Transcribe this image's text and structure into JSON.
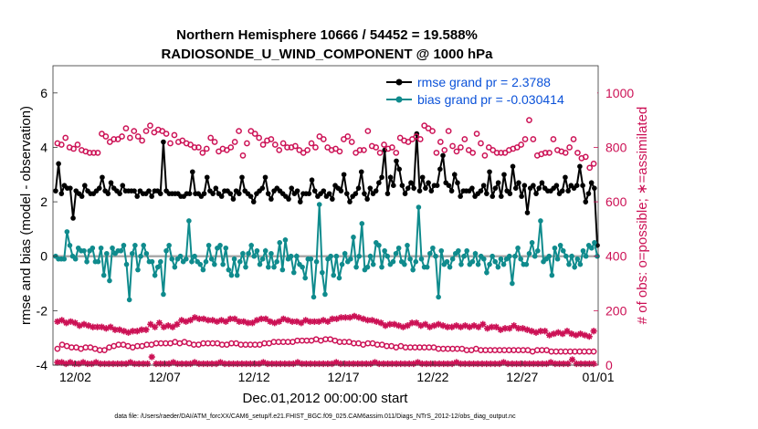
{
  "chart_data": {
    "type": "line",
    "title": "Northern Hemisphere 10666 / 54452 = 19.588%",
    "subtitle": "RADIOSONDE_U_WIND_COMPONENT @ 1000 hPa",
    "xlabel": "Dec.01,2012 00:00:00 start",
    "ylabel": "rmse and bias (model - observation)",
    "ylabel_right": "# of obs: o=possible; ∗=assimilated",
    "footnote": "data file: /Users/raeder/DAI/ATM_forcXX/CAM6_setup/f.e21.FHIST_BGC.f09_025.CAM6assim.011/Diags_NTrS_2012-12/obs_diag_output.nc",
    "xlim": [
      0.75,
      31.25
    ],
    "ylim": [
      -4,
      7
    ],
    "ylim_right": [
      0,
      1100
    ],
    "yticks": [
      -4,
      -2,
      0,
      2,
      4,
      6
    ],
    "yticks_right": [
      0,
      200,
      400,
      600,
      800,
      1000
    ],
    "xticks": [
      {
        "value": 2,
        "label": "12/02"
      },
      {
        "value": 7,
        "label": "12/07"
      },
      {
        "value": 12,
        "label": "12/12"
      },
      {
        "value": 17,
        "label": "12/17"
      },
      {
        "value": 22,
        "label": "12/22"
      },
      {
        "value": 27,
        "label": "12/27"
      },
      {
        "value": 32,
        "label": "01/01"
      }
    ],
    "x_start": 1,
    "x_step": 0.25,
    "legend": [
      {
        "name": "rmse grand pr = 2.3788",
        "color": "#000000"
      },
      {
        "name": "bias grand pr = -0.030414",
        "color": "#0f8b8d"
      }
    ],
    "series": [
      {
        "name": "rmse",
        "color": "#000000",
        "values": [
          2.4,
          3.4,
          2.3,
          2.6,
          2.5,
          2.5,
          1.4,
          2.4,
          2.3,
          2.2,
          2.6,
          2.4,
          2.3,
          2.3,
          2.4,
          2.5,
          2.9,
          2.4,
          2.3,
          2.7,
          2.5,
          2.4,
          2.3,
          2.6,
          2.4,
          2.4,
          2.4,
          2.4,
          2.2,
          2.4,
          2.3,
          2.3,
          2.4,
          2.2,
          2.4,
          2.4,
          2.3,
          4.2,
          2.4,
          2.3,
          2.3,
          2.3,
          2.3,
          2.2,
          2.2,
          2.3,
          2.3,
          3.1,
          2.3,
          2.3,
          2.2,
          2.3,
          2.9,
          2.4,
          2.3,
          2.5,
          2.3,
          2.2,
          2.4,
          2.4,
          2.3,
          2.1,
          2.4,
          2.3,
          2.9,
          2.4,
          2.3,
          2.2,
          2.0,
          2.3,
          2.4,
          2.5,
          2.9,
          2.3,
          2.1,
          2.4,
          2.5,
          2.4,
          2.3,
          2.2,
          2.1,
          2.5,
          2.3,
          2.4,
          2.0,
          2.3,
          2.3,
          2.3,
          2.8,
          2.4,
          2.2,
          2.3,
          2.4,
          2.2,
          2.3,
          2.1,
          2.6,
          2.5,
          2.4,
          3.0,
          2.3,
          2.0,
          2.2,
          2.3,
          2.5,
          3.1,
          2.3,
          2.1,
          2.5,
          2.3,
          2.4,
          2.7,
          2.9,
          3.9,
          2.3,
          2.9,
          2.6,
          3.5,
          3.2,
          2.6,
          2.3,
          2.5,
          2.7,
          2.5,
          4.5,
          2.4,
          2.9,
          2.5,
          2.7,
          2.4,
          2.6,
          2.6,
          3.2,
          3.7,
          2.7,
          2.6,
          2.4,
          3.0,
          2.7,
          2.2,
          2.4,
          2.4,
          2.4,
          2.5,
          2.2,
          2.3,
          2.4,
          2.6,
          2.3,
          3.1,
          2.2,
          2.5,
          2.7,
          2.2,
          3.0,
          2.4,
          2.3,
          3.3,
          2.5,
          2.7,
          2.2,
          2.6,
          1.6,
          2.5,
          2.6,
          2.3,
          2.5,
          2.7,
          2.5,
          2.4,
          2.4,
          2.5,
          2.6,
          2.3,
          2.4,
          2.9,
          2.4,
          2.6,
          2.5,
          2.6,
          3.3,
          2.6,
          2.0,
          2.3,
          2.7,
          2.5,
          0.4
        ]
      },
      {
        "name": "bias",
        "color": "#0f8b8d",
        "values": [
          0.0,
          -0.1,
          -0.1,
          -0.1,
          0.9,
          0.4,
          0.0,
          -0.1,
          0.3,
          0.2,
          0.2,
          -0.2,
          0.2,
          0.3,
          -0.2,
          -0.2,
          0.3,
          -0.7,
          0.1,
          -0.9,
          0.3,
          0.1,
          0.2,
          0.2,
          0.4,
          -0.3,
          -1.6,
          0.1,
          0.4,
          -0.5,
          0.0,
          0.4,
          0.1,
          -0.2,
          -0.2,
          -0.7,
          -0.4,
          -0.2,
          -1.4,
          0.2,
          0.4,
          -0.1,
          -0.4,
          -0.1,
          0.0,
          -0.2,
          -0.1,
          1.3,
          -0.2,
          0.0,
          -0.2,
          -0.3,
          -0.5,
          -0.2,
          0.4,
          -0.1,
          -0.3,
          0.3,
          0.4,
          -0.3,
          0.3,
          -0.5,
          -0.7,
          -0.1,
          -0.7,
          -0.2,
          0.1,
          -0.4,
          0.1,
          0.4,
          0.0,
          0.2,
          -0.3,
          -0.1,
          0.2,
          -0.4,
          0.1,
          -0.4,
          -0.2,
          0.5,
          -0.5,
          0.6,
          -0.1,
          0.0,
          -0.6,
          0.0,
          -0.3,
          -0.4,
          -0.8,
          -0.1,
          -0.1,
          -1.5,
          -0.2,
          1.9,
          -0.6,
          -1.4,
          -0.1,
          0.0,
          -0.7,
          0.0,
          -0.8,
          -0.3,
          0.1,
          -0.2,
          -0.1,
          0.7,
          -0.4,
          0.0,
          1.2,
          -0.5,
          -0.4,
          0.0,
          -0.3,
          0.5,
          0.4,
          -0.4,
          0.2,
          0.0,
          -0.3,
          -0.2,
          0.1,
          0.3,
          -0.2,
          -0.3,
          0.4,
          -0.1,
          -0.5,
          -0.2,
          1.8,
          -0.1,
          -0.4,
          -0.4,
          0.1,
          0.3,
          0.0,
          -1.5,
          0.2,
          -0.3,
          -0.2,
          -0.4,
          -0.1,
          0.1,
          0.2,
          -0.3,
          0.0,
          0.2,
          -0.3,
          -0.2,
          0.1,
          -0.3,
          0.0,
          -0.1,
          -0.6,
          -0.3,
          0.0,
          -0.2,
          -0.4,
          -0.1,
          -0.3,
          -0.1,
          0.0,
          -1.0,
          0.0,
          0.3,
          -0.1,
          -0.3,
          -0.3,
          0.1,
          0.5,
          0.0,
          0.2,
          1.3,
          -0.2,
          -0.1,
          0.0,
          -0.7,
          0.3,
          -0.1,
          0.4,
          0.2,
          0.0,
          -0.3,
          0.0,
          -0.4,
          -0.1,
          -0.3,
          0.2,
          0.0,
          0.4,
          0.3,
          0.5,
          0.0
        ]
      },
      {
        "name": "possible (upper)",
        "color": "#cc1155",
        "marker": "circle",
        "values": [
          815,
          810,
          835,
          800,
          795,
          810,
          790,
          785,
          780,
          780,
          780,
          850,
          840,
          820,
          830,
          830,
          840,
          870,
          835,
          860,
          840,
          825,
          860,
          880,
          855,
          865,
          860,
          850,
          815,
          845,
          820,
          825,
          815,
          810,
          800,
          800,
          780,
          795,
          835,
          820,
          785,
          795,
          790,
          800,
          820,
          860,
          770,
          815,
          860,
          850,
          835,
          810,
          825,
          830,
          810,
          790,
          815,
          800,
          800,
          805,
          790,
          780,
          790,
          815,
          800,
          840,
          830,
          800,
          790,
          795,
          785,
          830,
          840,
          820,
          780,
          790,
          790,
          860,
          805,
          800,
          780,
          810,
          795,
          800,
          780,
          835,
          825,
          820,
          830,
          840,
          830,
          880,
          870,
          860,
          780,
          820,
          790,
          860,
          805,
          785,
          800,
          830,
          790,
          780,
          850,
          815,
          770,
          800,
          790,
          780,
          780,
          780,
          790,
          795,
          800,
          810,
          830,
          900,
          830,
          770,
          775,
          780,
          780,
          830,
          790,
          785,
          780,
          800,
          830,
          780,
          760,
          765,
          725,
          740
        ]
      },
      {
        "name": "assimilated (upper)",
        "color": "#cc1155",
        "marker": "star",
        "values": [
          160,
          165,
          155,
          160,
          155,
          145,
          150,
          145,
          140,
          140,
          140,
          135,
          140,
          130,
          130,
          125,
          120,
          125,
          125,
          130,
          130,
          150,
          140,
          155,
          140,
          145,
          140,
          150,
          165,
          160,
          165,
          175,
          170,
          170,
          165,
          165,
          160,
          165,
          160,
          170,
          170,
          160,
          160,
          155,
          155,
          165,
          170,
          170,
          160,
          155,
          160,
          170,
          165,
          160,
          160,
          155,
          165,
          160,
          160,
          160,
          165,
          160,
          170,
          170,
          175,
          175,
          175,
          180,
          175,
          170,
          165,
          165,
          160,
          155,
          145,
          150,
          150,
          145,
          140,
          145,
          155,
          155,
          145,
          150,
          140,
          145,
          150,
          145,
          140,
          140,
          145,
          140,
          145,
          140,
          145,
          140,
          150,
          135,
          140,
          140,
          130,
          135,
          135,
          145,
          135,
          135,
          130,
          125,
          120,
          125,
          125,
          110,
          115,
          120,
          115,
          125,
          115,
          110,
          115,
          110,
          105,
          125
        ]
      },
      {
        "name": "possible (lower)",
        "color": "#cc1155",
        "marker": "circle",
        "values": [
          60,
          75,
          70,
          65,
          65,
          60,
          65,
          65,
          60,
          55,
          55,
          65,
          70,
          75,
          75,
          70,
          65,
          70,
          70,
          75,
          75,
          80,
          80,
          80,
          80,
          85,
          80,
          85,
          80,
          75,
          75,
          80,
          80,
          80,
          80,
          75,
          75,
          80,
          80,
          75,
          75,
          75,
          75,
          75,
          80,
          80,
          85,
          85,
          85,
          85,
          85,
          90,
          90,
          90,
          90,
          95,
          90,
          95,
          95,
          90,
          85,
          85,
          85,
          80,
          80,
          75,
          80,
          80,
          75,
          75,
          70,
          70,
          65,
          70,
          65,
          65,
          65,
          65,
          65,
          65,
          65,
          60,
          60,
          60,
          60,
          60,
          60,
          55,
          55,
          60,
          55,
          55,
          55,
          55,
          55,
          55,
          55,
          55,
          55,
          55,
          55,
          50,
          55,
          55,
          55,
          50,
          50,
          50,
          50,
          50,
          50,
          50,
          50,
          50,
          50
        ]
      },
      {
        "name": "assimilated (lower)",
        "color": "#cc1155",
        "marker": "star",
        "values": [
          10,
          10,
          5,
          10,
          5,
          5,
          10,
          5,
          5,
          10,
          5,
          5,
          5,
          5,
          5,
          5,
          5,
          10,
          5,
          5,
          5,
          5,
          30,
          5,
          5,
          5,
          5,
          10,
          5,
          5,
          5,
          5,
          10,
          5,
          5,
          5,
          5,
          5,
          10,
          5,
          5,
          5,
          5,
          5,
          5,
          5,
          5,
          5,
          10,
          5,
          5,
          5,
          5,
          5,
          5,
          5,
          10,
          5,
          5,
          5,
          5,
          5,
          5,
          5,
          5,
          10,
          5,
          5,
          5,
          5,
          5,
          5,
          5,
          5,
          10,
          5,
          5,
          5,
          5,
          5,
          5,
          5,
          5,
          5,
          10,
          5,
          5,
          5,
          5,
          5,
          5,
          5,
          5,
          10,
          5,
          5,
          5,
          5,
          5,
          5,
          5,
          5,
          5,
          5,
          10,
          5,
          5,
          5,
          5,
          5,
          5,
          5,
          5,
          5,
          5,
          10,
          5,
          5,
          5,
          5,
          20,
          5,
          5,
          5,
          5,
          5
        ]
      }
    ]
  }
}
